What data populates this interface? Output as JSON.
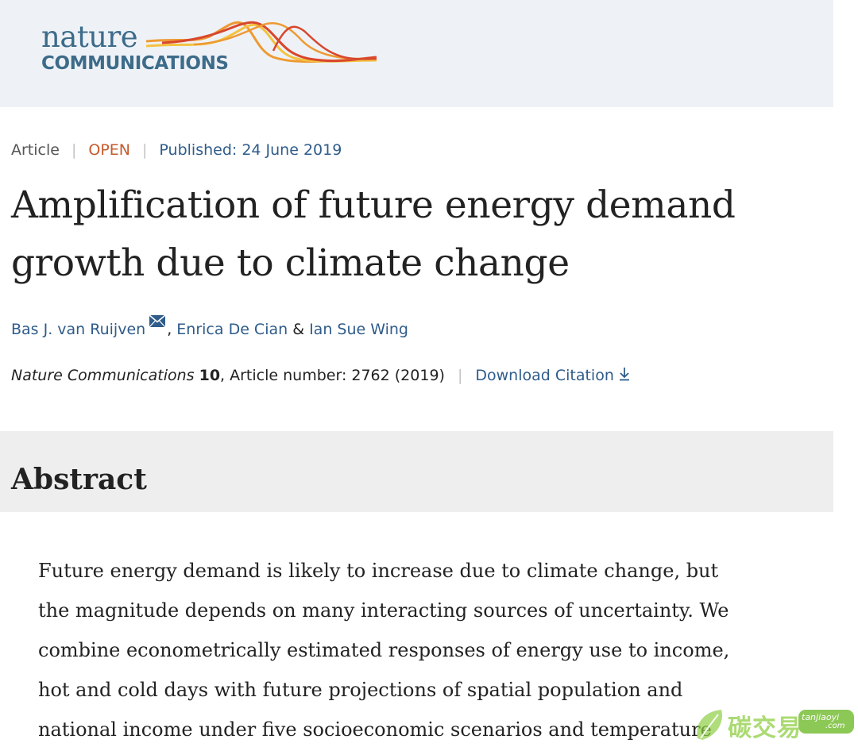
{
  "header": {
    "logo_top": "nature",
    "logo_bottom": "COMMUNICATIONS",
    "brand_colors": {
      "text": "#3d6b8a",
      "wave_red": "#d8472d",
      "wave_orange": "#ee9a33",
      "wave_yellow": "#f3c23f"
    }
  },
  "article": {
    "type": "Article",
    "access": "OPEN",
    "published": "Published: 24 June 2019",
    "title_lines": [
      "Amplification of future energy demand",
      "growth due to climate change"
    ],
    "authors": [
      {
        "name": "Bas J. van Ruijven",
        "contact_icon": "mail-icon"
      },
      {
        "name": "Enrica De Cian"
      },
      {
        "name": "Ian Sue Wing"
      }
    ],
    "author_sep_comma": ",",
    "author_sep_amp": "&",
    "citation": {
      "journal": "Nature Communications",
      "volume": "10",
      "rest": ", Article number: 2762 (2019)",
      "download_label": "Download Citation",
      "download_icon": "download-arrow-icon"
    }
  },
  "abstract": {
    "heading": "Abstract",
    "lines": [
      "Future energy demand is likely to increase due to climate change, but",
      "the magnitude depends on many interacting sources of uncertainty. We",
      "combine econometrically estimated responses of energy use to income,",
      "hot and cold days with future projections of spatial population and",
      "national income under five socioeconomic scenarios and temperature"
    ]
  },
  "watermark": {
    "text": "碳交易",
    "badge_top": "tanjiaoyi",
    "badge_bottom": ".com",
    "color": "#8fce44"
  }
}
